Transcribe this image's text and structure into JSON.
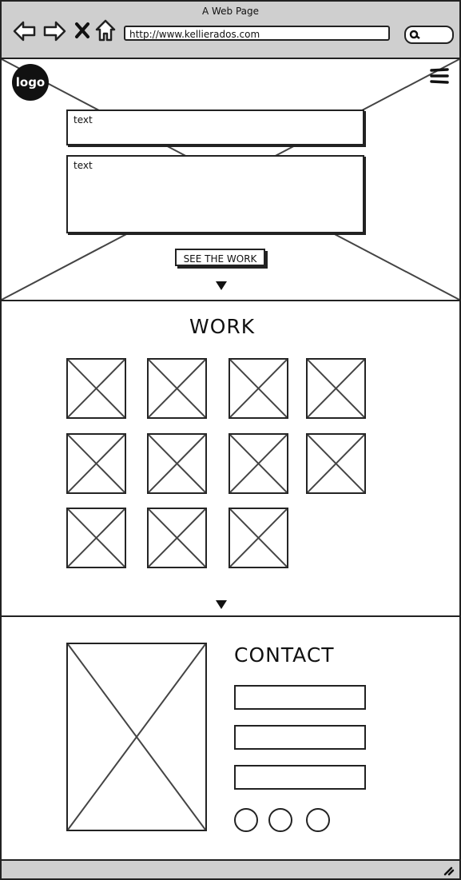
{
  "window": {
    "title": "A Web Page"
  },
  "browser": {
    "url": "http://www.kellierados.com",
    "back_icon": "arrow-left-icon",
    "forward_icon": "arrow-right-icon",
    "stop_icon": "close-icon",
    "home_icon": "home-icon",
    "search_icon": "search-icon"
  },
  "hero": {
    "logo_label": "logo",
    "menu_icon": "hamburger-icon",
    "text_1": "text",
    "text_2": "text",
    "cta_label": "SEE THE WORK",
    "next_icon": "triangle-down-icon"
  },
  "work": {
    "title": "WORK",
    "thumbnails": 11,
    "next_icon": "triangle-down-icon"
  },
  "contact": {
    "title": "CONTACT",
    "fields": [
      "",
      "",
      ""
    ],
    "social_icons": [
      "circle-icon",
      "circle-icon",
      "circle-icon"
    ]
  },
  "colors": {
    "chrome": "#cfcfcf",
    "line": "#222222"
  }
}
